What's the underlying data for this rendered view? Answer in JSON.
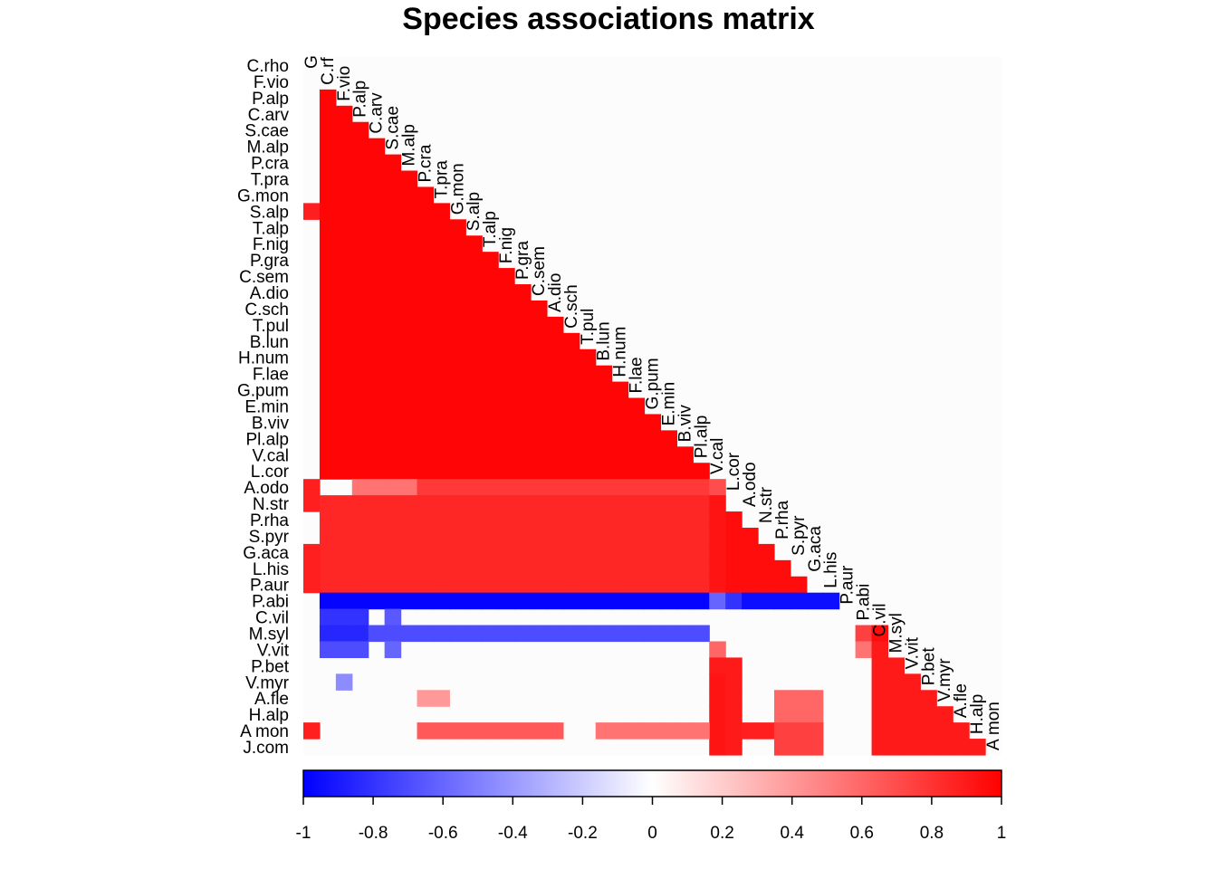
{
  "chart_data": {
    "type": "heatmap",
    "title": "Species associations matrix",
    "species": [
      "G",
      "C.rf",
      "F.vio",
      "P.alp",
      "C.arv",
      "S.cae",
      "M.alp",
      "P.cra",
      "T.pra",
      "G.mon",
      "S.alp",
      "T.alp",
      "F.nig",
      "P.gra",
      "C.sem",
      "A.dio",
      "C.sch",
      "T.pul",
      "B.lun",
      "H.num",
      "F.lae",
      "G.pum",
      "E.min",
      "B.viv",
      "Pl.alp",
      "V.cal",
      "L.cor",
      "A.odo",
      "N.str",
      "P.rha",
      "S.pyr",
      "G.aca",
      "L.his",
      "P.aur",
      "P.abi",
      "C.vil",
      "M.syl",
      "V.vit",
      "P.bet",
      "V.myr",
      "A.fle",
      "H.alp",
      "A mon"
    ],
    "row_labels": [
      "C.rho",
      "F.vio",
      "P.alp",
      "C.arv",
      "S.cae",
      "M.alp",
      "P.cra",
      "T.pra",
      "G.mon",
      "S.alp",
      "T.alp",
      "F.nig",
      "P.gra",
      "C.sem",
      "A.dio",
      "C.sch",
      "T.pul",
      "B.lun",
      "H.num",
      "F.lae",
      "G.pum",
      "E.min",
      "B.viv",
      "Pl.alp",
      "V.cal",
      "L.cor",
      "A.odo",
      "N.str",
      "P.rha",
      "S.pyr",
      "G.aca",
      "L.his",
      "P.aur",
      "P.abi",
      "C.vil",
      "M.syl",
      "V.vit",
      "P.bet",
      "V.myr",
      "A.fle",
      "H.alp",
      "A mon",
      "J.com"
    ],
    "value_range": [
      -1,
      1
    ],
    "colorbar_ticks": [
      "-1",
      "-0.8",
      "-0.6",
      "-0.4",
      "-0.2",
      "0",
      "0.2",
      "0.4",
      "0.6",
      "0.8",
      "1"
    ],
    "colors": {
      "negative": "#0000ff",
      "zero": "#ffffff",
      "positive": "#ff0000",
      "background": "#fcfcfc"
    },
    "cells": [
      {
        "row": 9,
        "col": 0,
        "value": 0.88
      },
      {
        "rows": [
          2,
          25
        ],
        "cols": [
          1,
          24
        ],
        "lower": true,
        "value": 0.98
      },
      {
        "row": 26,
        "col": 0,
        "value": 0.88
      },
      {
        "row": 26,
        "cols": [
          3,
          6
        ],
        "value": 0.55
      },
      {
        "row": 26,
        "cols": [
          7,
          24
        ],
        "value": 0.78
      },
      {
        "row": 26,
        "col": 25,
        "value": 0.7
      },
      {
        "row": 27,
        "col": 0,
        "value": 0.88
      },
      {
        "rows": [
          27,
          32
        ],
        "cols": [
          1,
          24
        ],
        "value": 0.85
      },
      {
        "rows": [
          27,
          32
        ],
        "col": 25,
        "value": 0.92
      },
      {
        "rows": [
          28,
          32
        ],
        "cols": [
          26,
          31
        ],
        "lower": true,
        "value": 0.95
      },
      {
        "rows": [
          30,
          32
        ],
        "col": 0,
        "value": 0.88
      },
      {
        "row": 33,
        "cols": [
          1,
          24
        ],
        "value": -0.98
      },
      {
        "row": 33,
        "col": 25,
        "value": -0.6
      },
      {
        "row": 33,
        "col": 26,
        "value": -0.8
      },
      {
        "row": 33,
        "cols": [
          27,
          32
        ],
        "value": -0.95
      },
      {
        "row": 34,
        "cols": [
          1,
          3
        ],
        "value": -0.8
      },
      {
        "row": 34,
        "col": 5,
        "value": -0.65
      },
      {
        "row": 35,
        "cols": [
          1,
          3
        ],
        "value": -0.85
      },
      {
        "row": 35,
        "cols": [
          4,
          24
        ],
        "value": -0.7
      },
      {
        "row": 35,
        "col": 34,
        "value": 0.75
      },
      {
        "row": 35,
        "col": 35,
        "value": 0.95
      },
      {
        "row": 36,
        "cols": [
          1,
          3
        ],
        "value": -0.7
      },
      {
        "row": 36,
        "col": 5,
        "value": -0.6
      },
      {
        "row": 36,
        "col": 25,
        "value": 0.6
      },
      {
        "row": 36,
        "col": 34,
        "value": 0.55
      },
      {
        "rows": [
          36,
          42
        ],
        "cols": [
          35,
          42
        ],
        "lower": true,
        "value": 0.9
      },
      {
        "row": 37,
        "col": 25,
        "value": 0.9
      },
      {
        "row": 37,
        "col": 26,
        "value": 0.9
      },
      {
        "row": 38,
        "col": 2,
        "value": -0.45
      },
      {
        "rows": [
          38,
          42
        ],
        "col": 25,
        "value": 0.92
      },
      {
        "rows": [
          38,
          42
        ],
        "col": 26,
        "value": 0.9
      },
      {
        "row": 39,
        "cols": [
          7,
          8
        ],
        "value": 0.4
      },
      {
        "rows": [
          39,
          42
        ],
        "cols": [
          29,
          31
        ],
        "value": 0.6
      },
      {
        "row": 41,
        "col": 0,
        "value": 0.88
      },
      {
        "row": 41,
        "cols": [
          7,
          15
        ],
        "value": 0.65
      },
      {
        "row": 41,
        "cols": [
          18,
          24
        ],
        "value": 0.55
      },
      {
        "row": 41,
        "cols": [
          27,
          28
        ],
        "value": 0.88
      },
      {
        "rows": [
          41,
          42
        ],
        "cols": [
          29,
          31
        ],
        "value": 0.75
      }
    ]
  }
}
